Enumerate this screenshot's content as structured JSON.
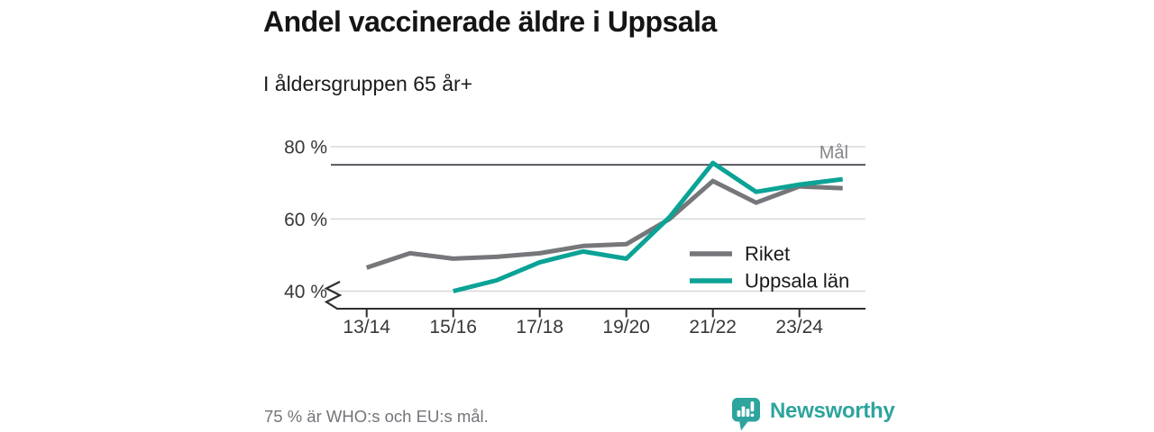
{
  "header": {
    "title": "Andel vaccinerade äldre i Uppsala",
    "subtitle": "I åldersgruppen 65 år+"
  },
  "chart_data": {
    "type": "line",
    "x": [
      "13/14",
      "14/15",
      "15/16",
      "16/17",
      "17/18",
      "18/19",
      "19/20",
      "20/21",
      "21/22",
      "22/23",
      "23/24",
      "24/25"
    ],
    "xtick_every": 2,
    "unit": "%",
    "series": [
      {
        "name": "Riket",
        "color": "#76777a",
        "values": [
          46.5,
          50.5,
          49,
          49.5,
          50.5,
          52.5,
          53,
          60,
          70.5,
          64.5,
          69,
          68.5
        ]
      },
      {
        "name": "Uppsala län",
        "color": "#0aa396",
        "values": [
          null,
          null,
          40,
          43,
          48,
          51,
          49,
          60.5,
          75.5,
          67.5,
          69.5,
          71
        ]
      }
    ],
    "yticks": [
      {
        "value": 80,
        "label": "80 %"
      },
      {
        "value": 60,
        "label": "60 %"
      },
      {
        "value": 40,
        "label": "40 %"
      }
    ],
    "ylim": [
      36,
      83
    ],
    "axis_break": true,
    "grid": "horizontal",
    "target": {
      "value": 75,
      "label": "Mål"
    },
    "legend_position": "inside-right"
  },
  "footer": {
    "note": "75 % är WHO:s och EU:s mål.",
    "brand": "Newsworthy"
  },
  "colors": {
    "accent_teal": "#0aa396",
    "line_gray": "#76777a",
    "grid": "#d8d8d8",
    "target_line": "#55565c",
    "axis": "#2e2e32",
    "tick_text": "#38383c",
    "muted_text": "#74757a",
    "brand_teal": "#2ea49e"
  }
}
